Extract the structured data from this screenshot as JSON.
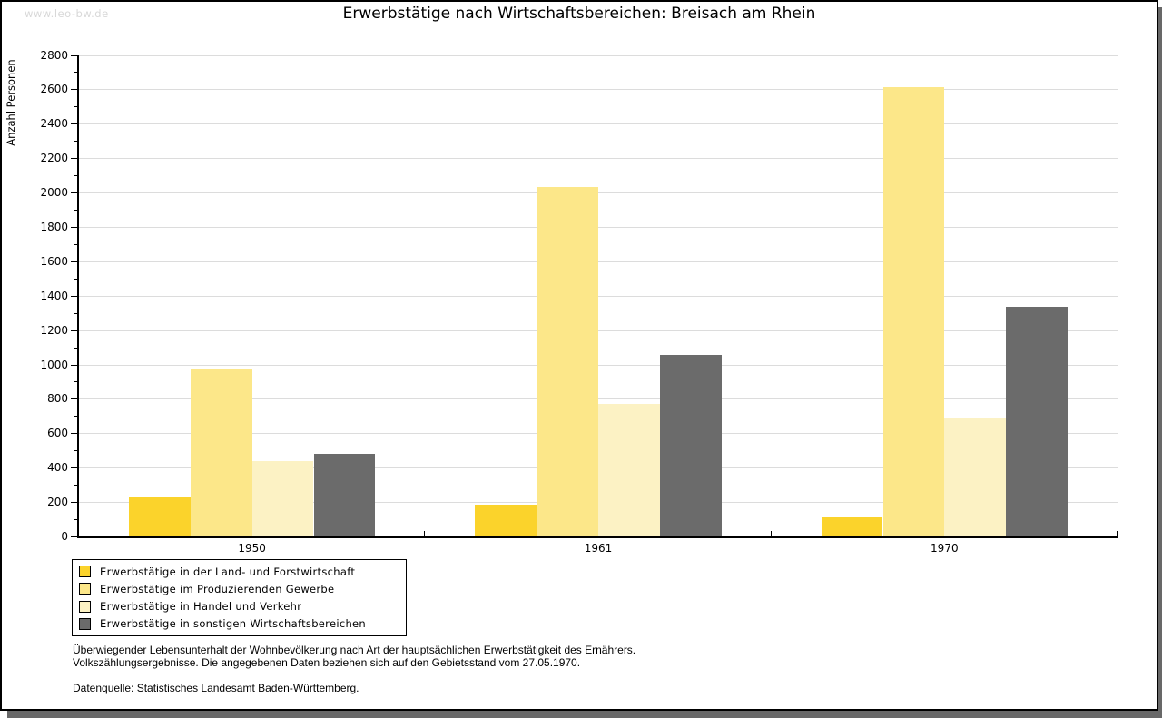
{
  "watermark": "www.leo-bw.de",
  "chart_data": {
    "type": "bar",
    "title": "Erwerbstätige nach Wirtschaftsbereichen: Breisach am Rhein",
    "ylabel": "Anzahl Personen",
    "xlabel": "",
    "categories": [
      "1950",
      "1961",
      "1970"
    ],
    "series": [
      {
        "name": "Erwerbstätige in der Land- und Forstwirtschaft",
        "color": "#fbd32b",
        "values": [
          225,
          185,
          110
        ]
      },
      {
        "name": "Erwerbstätige im Produzierenden Gewerbe",
        "color": "#fce789",
        "values": [
          970,
          2030,
          2610
        ]
      },
      {
        "name": "Erwerbstätige in Handel und Verkehr",
        "color": "#fcf2c4",
        "values": [
          440,
          770,
          685
        ]
      },
      {
        "name": "Erwerbstätige in sonstigen Wirtschaftsbereichen",
        "color": "#6b6b6b",
        "values": [
          480,
          1055,
          1335
        ]
      }
    ],
    "ylim": [
      0,
      2800
    ],
    "ytick_step": 200,
    "y_minor_step": 100,
    "grid": true,
    "legend_position": "bottom-left"
  },
  "footnote": {
    "line1": "Überwiegender Lebensunterhalt der Wohnbevölkerung nach Art der hauptsächlichen Erwerbstätigkeit des Ernährers.",
    "line2": "Volkszählungsergebnisse. Die angegebenen Daten beziehen sich auf den Gebietsstand vom 27.05.1970.",
    "source": "Datenquelle: Statistisches Landesamt Baden-Württemberg."
  },
  "colors": {
    "axis": "#000000",
    "grid": "#dcdcdc",
    "shadow": "#686868",
    "watermark": "#d8d8d8",
    "background": "#ffffff"
  }
}
